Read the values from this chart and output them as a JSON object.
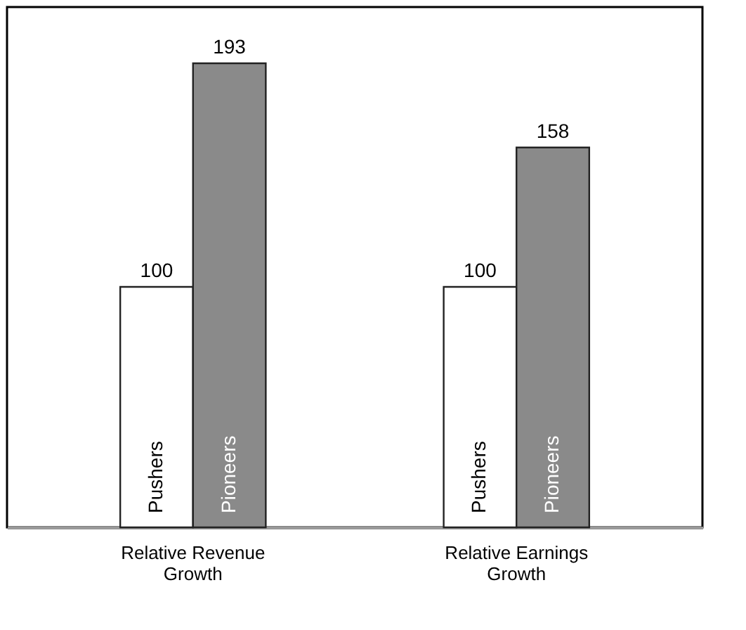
{
  "chart_data": {
    "type": "bar",
    "categories": [
      "Relative Revenue Growth",
      "Relative Earnings Growth"
    ],
    "series": [
      {
        "name": "Pushers",
        "color": "#ffffff",
        "values": [
          100,
          100
        ]
      },
      {
        "name": "Pioneers",
        "color": "#8a8a8a",
        "values": [
          193,
          158
        ]
      }
    ],
    "data_labels": true,
    "legend": false,
    "grid": false
  }
}
